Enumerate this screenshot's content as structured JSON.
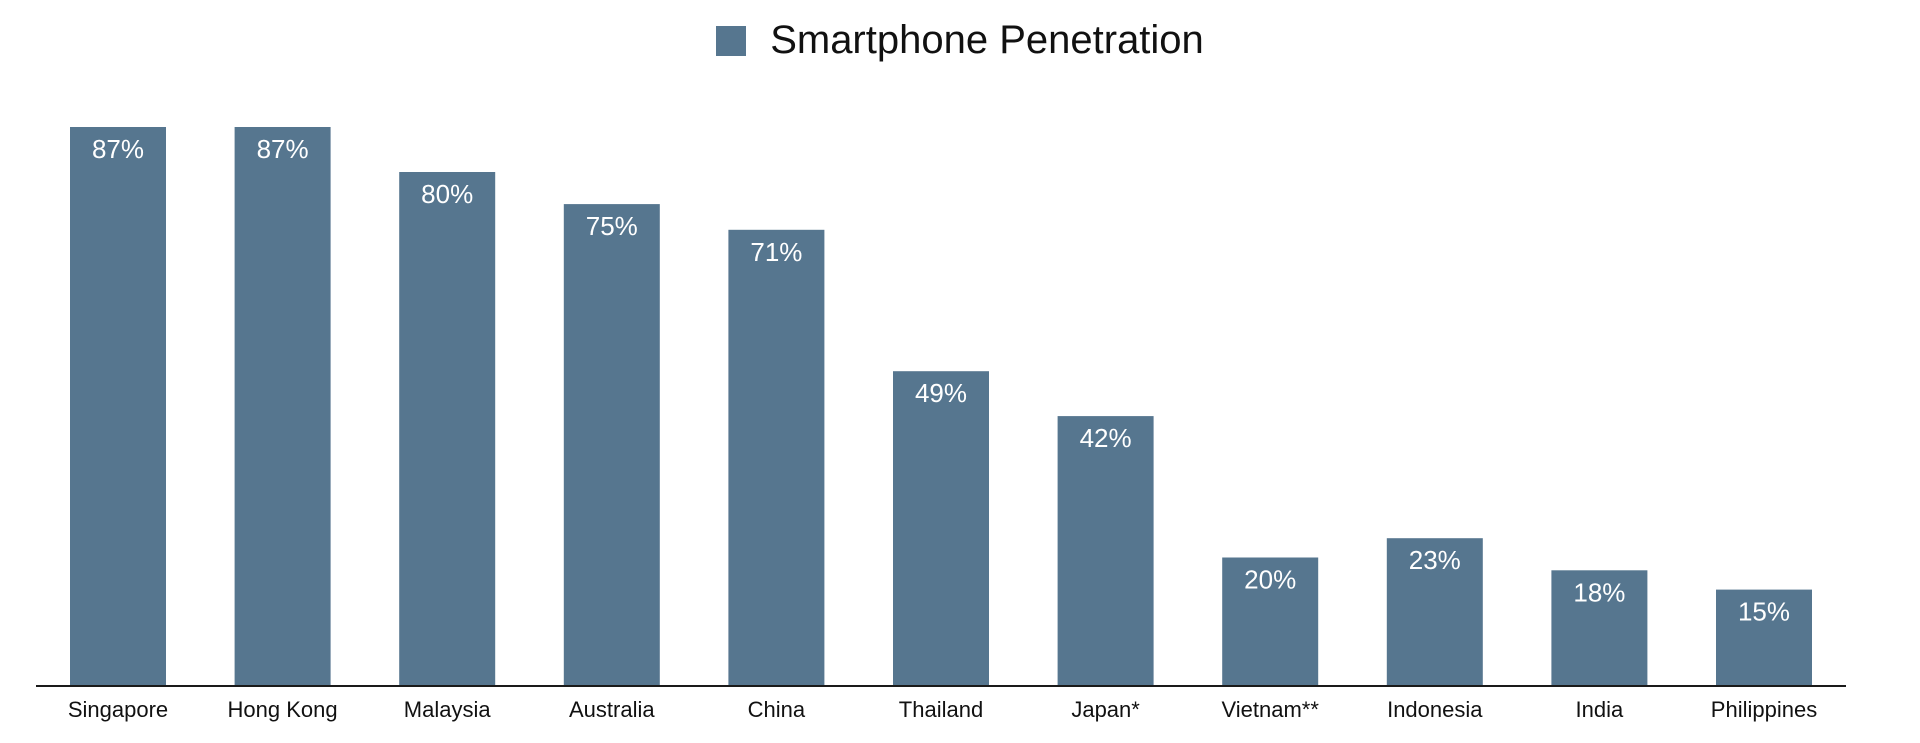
{
  "colors": {
    "bar": "#56768f",
    "axis": "#1a1a1a",
    "value_label": "#ffffff",
    "category_label": "#111111"
  },
  "chart_data": {
    "type": "bar",
    "categories": [
      "Singapore",
      "Hong Kong",
      "Malaysia",
      "Australia",
      "China",
      "Thailand",
      "Japan*",
      "Vietnam**",
      "Indonesia",
      "India",
      "Philippines"
    ],
    "series": [
      {
        "name": "Smartphone Penetration",
        "values": [
          87,
          87,
          80,
          75,
          71,
          49,
          42,
          20,
          23,
          18,
          15
        ],
        "labels": [
          "87%",
          "87%",
          "80%",
          "75%",
          "71%",
          "49%",
          "42%",
          "20%",
          "23%",
          "18%",
          "15%"
        ]
      }
    ],
    "ylim": [
      0,
      87
    ],
    "grid": false,
    "legend_position": "top-center",
    "show_y_axis": false,
    "data_labels": "inside-top"
  }
}
